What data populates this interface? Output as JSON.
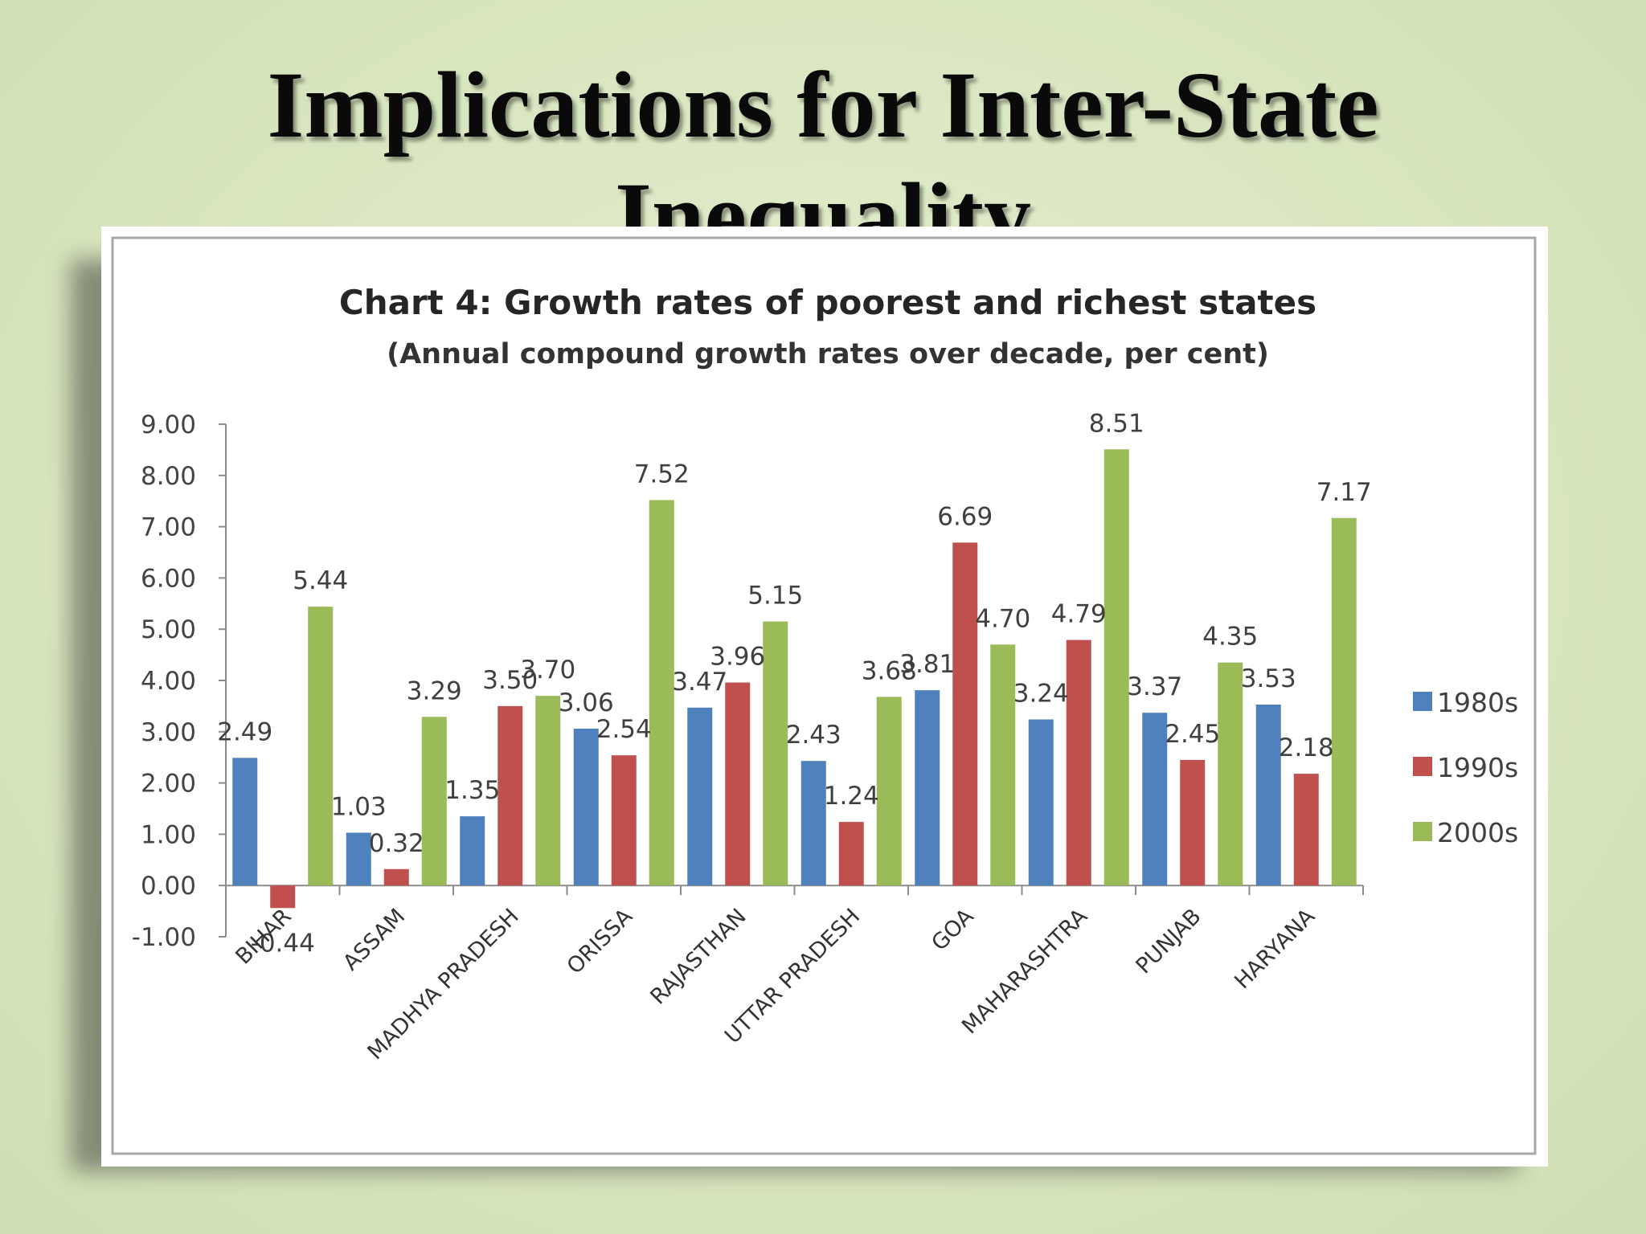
{
  "slide": {
    "title": "Implications for Inter-State Inequality"
  },
  "chart_data": {
    "type": "bar",
    "title": "Chart 4: Growth rates of poorest and richest states",
    "subtitle": "(Annual compound growth rates over decade, per cent)",
    "xlabel": "",
    "ylabel": "",
    "ylim": [
      -1,
      9
    ],
    "yticks": [
      9,
      8,
      7,
      6,
      5,
      4,
      3,
      2,
      1,
      0,
      -1
    ],
    "ytick_labels": [
      "9.00",
      "8.00",
      "7.00",
      "6.00",
      "5.00",
      "4.00",
      "3.00",
      "2.00",
      "1.00",
      "0.00",
      "-1.00"
    ],
    "categories": [
      "BIHAR",
      "ASSAM",
      "MADHYA PRADESH",
      "ORISSA",
      "RAJASTHAN",
      "UTTAR PRADESH",
      "GOA",
      "MAHARASHTRA",
      "PUNJAB",
      "HARYANA"
    ],
    "series": [
      {
        "name": "1980s",
        "color": "#4f81bd",
        "values": [
          2.49,
          1.03,
          1.35,
          3.06,
          3.47,
          2.43,
          3.81,
          3.24,
          3.37,
          3.53
        ]
      },
      {
        "name": "1990s",
        "color": "#c0504d",
        "values": [
          -0.44,
          0.32,
          3.5,
          2.54,
          3.96,
          1.24,
          6.69,
          4.79,
          2.45,
          2.18
        ]
      },
      {
        "name": "2000s",
        "color": "#9bbb59",
        "values": [
          5.44,
          3.29,
          3.7,
          7.52,
          5.15,
          3.68,
          4.7,
          8.51,
          4.35,
          7.17
        ]
      }
    ],
    "data_labels": [
      [
        "2.49",
        "1.03",
        "1.35",
        "3.06",
        "3.47",
        "2.43",
        "3.81",
        "3.24",
        "3.37",
        "3.53"
      ],
      [
        "-0.44",
        "0.32",
        "3.50",
        "2.54",
        "3.96",
        "1.24",
        "6.69",
        "4.79",
        "2.45",
        "2.18"
      ],
      [
        "5.44",
        "3.29",
        "3.70",
        "7.52",
        "5.15",
        "3.68",
        "4.70",
        "8.51",
        "4.35",
        "7.17"
      ]
    ],
    "legend_position": "right",
    "grid": false
  }
}
